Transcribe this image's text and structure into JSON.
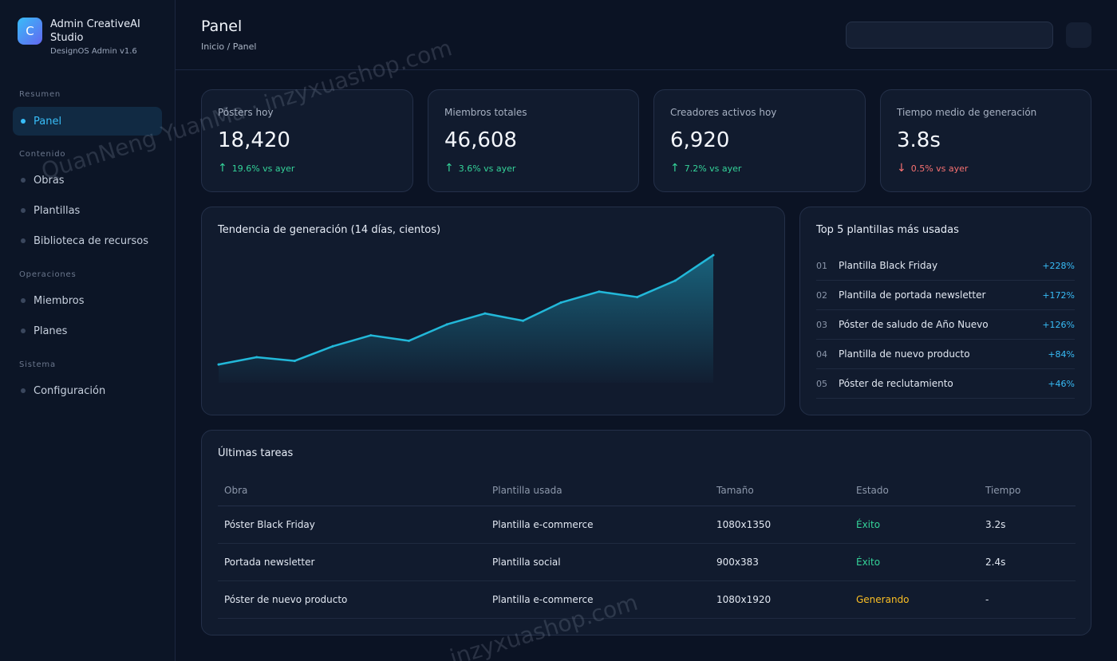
{
  "brand": {
    "logo_letter": "C",
    "name": "Admin CreativeAI Studio",
    "version": "DesignOS Admin v1.6"
  },
  "sidebar": {
    "sections": [
      "Resumen",
      "Contenido",
      "Operaciones",
      "Sistema"
    ],
    "items": [
      {
        "label": "Panel",
        "active": true
      },
      {
        "label": "Obras"
      },
      {
        "label": "Plantillas"
      },
      {
        "label": "Biblioteca de recursos"
      },
      {
        "label": "Miembros"
      },
      {
        "label": "Planes"
      },
      {
        "label": "Configuración"
      }
    ]
  },
  "header": {
    "title": "Panel",
    "breadcrumb": "Inicio / Panel"
  },
  "stats": [
    {
      "label": "Pósters hoy",
      "value": "18,420",
      "delta": "19.6% vs ayer",
      "trend": "up",
      "arrow": "↑"
    },
    {
      "label": "Miembros totales",
      "value": "46,608",
      "delta": "3.6% vs ayer",
      "trend": "up",
      "arrow": "↑"
    },
    {
      "label": "Creadores activos hoy",
      "value": "6,920",
      "delta": "7.2% vs ayer",
      "trend": "up",
      "arrow": "↑"
    },
    {
      "label": "Tiempo medio de generación",
      "value": "3.8s",
      "delta": "0.5% vs ayer",
      "trend": "down",
      "arrow": "↓"
    }
  ],
  "chart_data": {
    "type": "area",
    "title": "Tendencia de generación (14 días, cientos)",
    "x": [
      1,
      2,
      3,
      4,
      5,
      6,
      7,
      8,
      9,
      10,
      11,
      12,
      13,
      14
    ],
    "values": [
      20,
      24,
      22,
      30,
      36,
      33,
      42,
      48,
      44,
      54,
      60,
      57,
      66,
      80
    ],
    "ylim": [
      10,
      80
    ],
    "grid": false,
    "line_color": "#22b8d9"
  },
  "top_templates": {
    "title": "Top 5 plantillas más usadas",
    "items": [
      {
        "rank": "01",
        "name": "Plantilla Black Friday",
        "pct": "+228%"
      },
      {
        "rank": "02",
        "name": "Plantilla de portada newsletter",
        "pct": "+172%"
      },
      {
        "rank": "03",
        "name": "Póster de saludo de Año Nuevo",
        "pct": "+126%"
      },
      {
        "rank": "04",
        "name": "Plantilla de nuevo producto",
        "pct": "+84%"
      },
      {
        "rank": "05",
        "name": "Póster de reclutamiento",
        "pct": "+46%"
      }
    ]
  },
  "tasks": {
    "title": "Últimas tareas",
    "columns": [
      "Obra",
      "Plantilla usada",
      "Tamaño",
      "Estado",
      "Tiempo"
    ],
    "rows": [
      {
        "obra": "Póster Black Friday",
        "plantilla": "Plantilla e-commerce",
        "tamano": "1080x1350",
        "estado": "Éxito",
        "estado_tipo": "ok",
        "tiempo": "3.2s"
      },
      {
        "obra": "Portada newsletter",
        "plantilla": "Plantilla social",
        "tamano": "900x383",
        "estado": "Éxito",
        "estado_tipo": "ok",
        "tiempo": "2.4s"
      },
      {
        "obra": "Póster de nuevo producto",
        "plantilla": "Plantilla e-commerce",
        "tamano": "1080x1920",
        "estado": "Generando",
        "estado_tipo": "gen",
        "tiempo": "-"
      }
    ]
  },
  "watermark": {
    "text_1": "QuanNeng YuanMa · inzyxuashop.com",
    "text_2": "inzyxuashop.com"
  },
  "colors": {
    "accent": "#38bdf8",
    "up": "#34d399",
    "down": "#f87171",
    "pending": "#fbbf24"
  }
}
